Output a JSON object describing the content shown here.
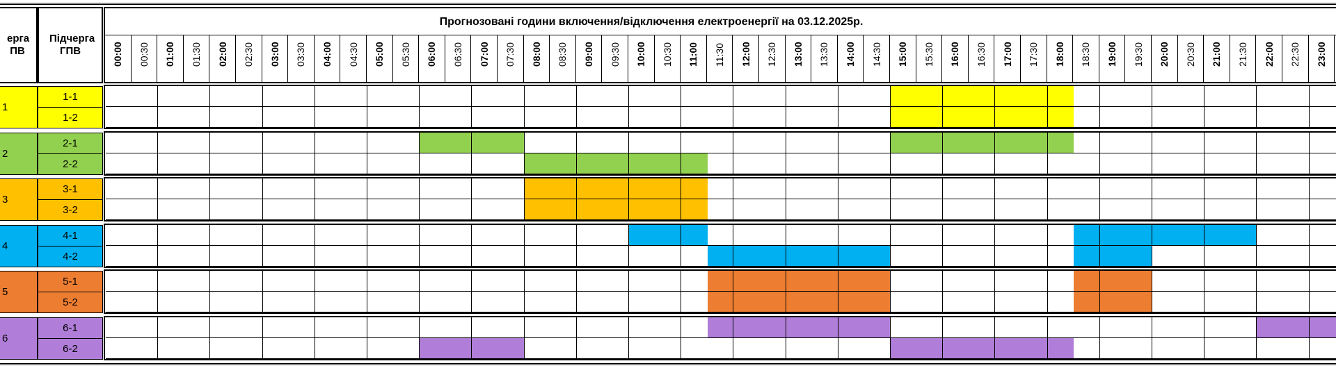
{
  "header": {
    "title": "Прогнозовані години включення/відключення електроенергії на 03.12.2025р.",
    "group_col_label": "Черга ГПВ",
    "group_col_visible": "ерга ПВ",
    "subgroup_col_label": "Підчерга ГПВ"
  },
  "times": [
    "00:00",
    "00:30",
    "01:00",
    "01:30",
    "02:00",
    "02:30",
    "03:00",
    "03:30",
    "04:00",
    "04:30",
    "05:00",
    "05:30",
    "06:00",
    "06:30",
    "07:00",
    "07:30",
    "08:00",
    "08:30",
    "09:00",
    "09:30",
    "10:00",
    "10:30",
    "11:00",
    "11:30",
    "12:00",
    "12:30",
    "13:00",
    "13:30",
    "14:00",
    "14:30",
    "15:00",
    "15:30",
    "16:00",
    "16:30",
    "17:00",
    "17:30",
    "18:00",
    "18:30",
    "19:00",
    "19:30",
    "20:00",
    "20:30",
    "21:00",
    "21:30",
    "22:00",
    "22:30",
    "23:00"
  ],
  "groups": [
    {
      "label": "1",
      "color": "#ffff00",
      "subgroups": [
        {
          "label": "1-1",
          "off": [
            [
              15.0,
              18.5
            ]
          ]
        },
        {
          "label": "1-2",
          "off": [
            [
              15.0,
              18.5
            ]
          ]
        }
      ]
    },
    {
      "label": "2",
      "color": "#92d050",
      "subgroups": [
        {
          "label": "2-1",
          "off": [
            [
              6.0,
              8.0
            ],
            [
              15.0,
              18.5
            ]
          ]
        },
        {
          "label": "2-2",
          "off": [
            [
              8.0,
              11.5
            ]
          ]
        }
      ]
    },
    {
      "label": "3",
      "color": "#ffc000",
      "subgroups": [
        {
          "label": "3-1",
          "off": [
            [
              8.0,
              11.5
            ]
          ]
        },
        {
          "label": "3-2",
          "off": [
            [
              8.0,
              11.5
            ]
          ]
        }
      ]
    },
    {
      "label": "4",
      "color": "#00b0f0",
      "subgroups": [
        {
          "label": "4-1",
          "off": [
            [
              10.0,
              11.5
            ],
            [
              18.5,
              22.0
            ]
          ]
        },
        {
          "label": "4-2",
          "off": [
            [
              11.5,
              15.0
            ],
            [
              18.5,
              20.0
            ]
          ]
        }
      ]
    },
    {
      "label": "5",
      "color": "#ed7d31",
      "subgroups": [
        {
          "label": "5-1",
          "off": [
            [
              11.5,
              15.0
            ],
            [
              18.5,
              20.0
            ]
          ]
        },
        {
          "label": "5-2",
          "off": [
            [
              11.5,
              15.0
            ],
            [
              18.5,
              20.0
            ]
          ]
        }
      ]
    },
    {
      "label": "6",
      "color": "#b07ed8",
      "subgroups": [
        {
          "label": "6-1",
          "off": [
            [
              11.5,
              15.0
            ],
            [
              22.0,
              24.0
            ]
          ]
        },
        {
          "label": "6-2",
          "off": [
            [
              6.0,
              8.0
            ],
            [
              15.0,
              18.5
            ]
          ]
        }
      ]
    }
  ]
}
